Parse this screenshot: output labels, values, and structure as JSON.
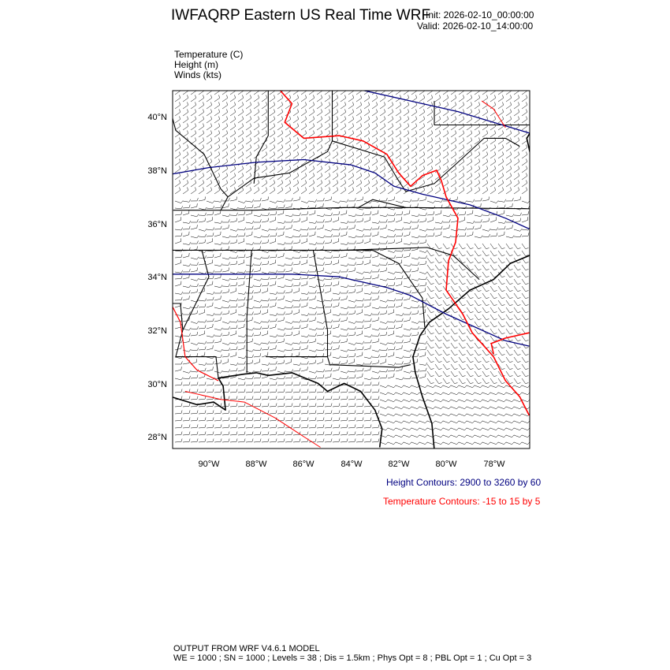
{
  "header": {
    "title": "IWFAQRP Eastern US Real Time WRF",
    "init": "Init: 2026-02-10_00:00:00",
    "valid": "Valid: 2026-02-10_14:00:00"
  },
  "fields": [
    "Temperature   (C)",
    "Height   (m)",
    "Winds   (kts)"
  ],
  "map": {
    "lat_ticks": [
      "40°N",
      "38°N",
      "36°N",
      "34°N",
      "32°N",
      "30°N",
      "28°N"
    ],
    "lon_ticks": [
      "90°W",
      "88°W",
      "86°W",
      "84°W",
      "82°W",
      "80°W",
      "78°W"
    ],
    "height_color": "#000080",
    "temperature_color": "#ff0000"
  },
  "contour_info": {
    "height": "Height Contours: 2900 to 3260 by 60",
    "temperature": "Temperature Contours: -15 to 15 by 5"
  },
  "footer": {
    "line1": "OUTPUT FROM WRF V4.6.1 MODEL",
    "line2": "WE = 1000 ; SN = 1000 ; Levels = 38 ; Dis = 1.5km ; Phys Opt = 8 ; PBL Opt = 1 ; Cu Opt = 3"
  }
}
